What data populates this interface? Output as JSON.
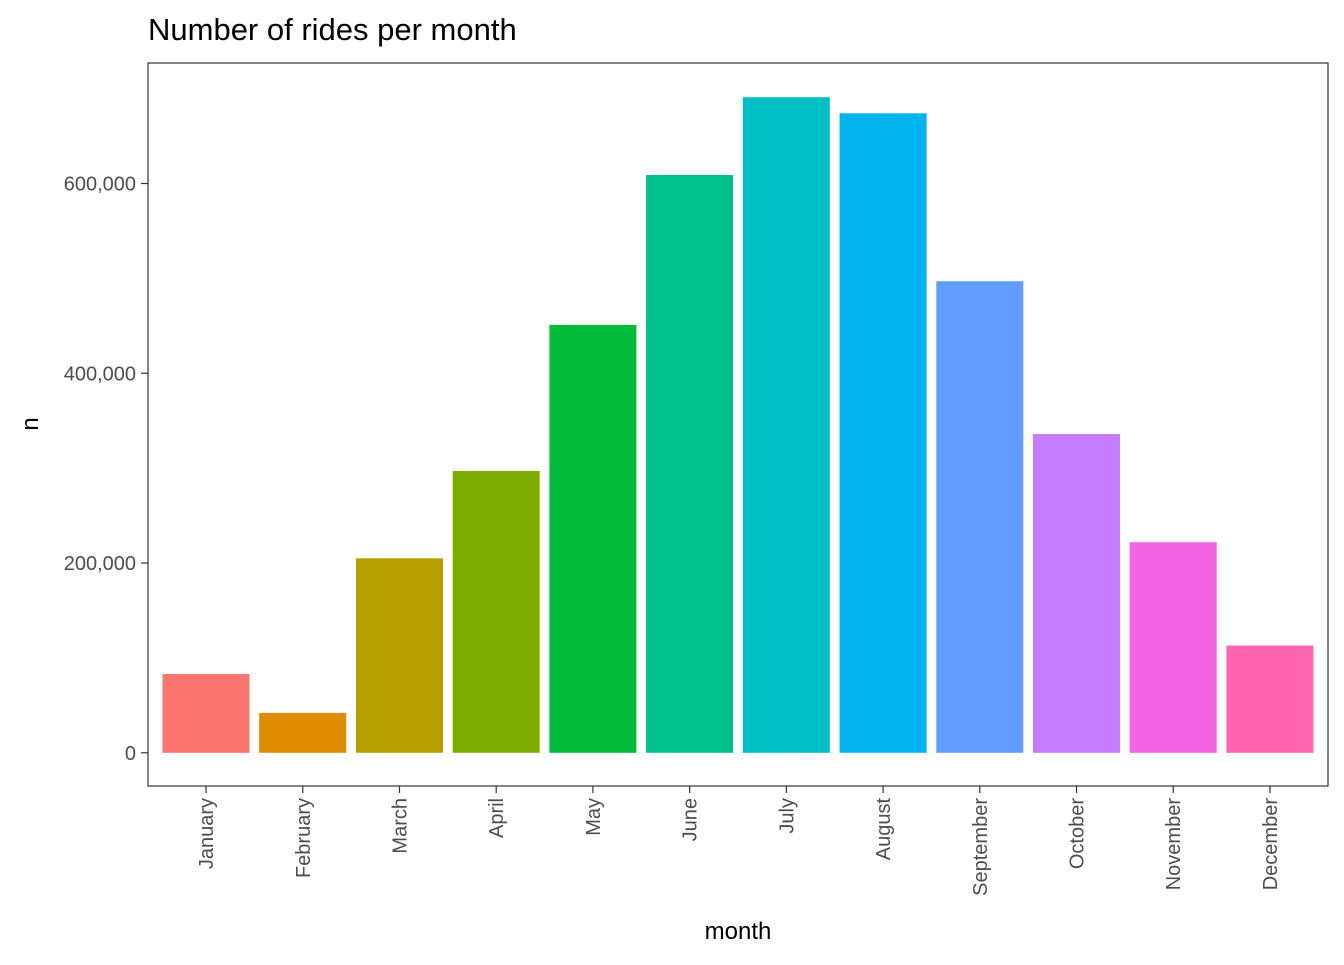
{
  "chart_data": {
    "type": "bar",
    "title": "Number of rides per month",
    "xlabel": "month",
    "ylabel": "n",
    "categories": [
      "January",
      "February",
      "March",
      "April",
      "May",
      "June",
      "July",
      "August",
      "September",
      "October",
      "November",
      "December"
    ],
    "values": [
      83000,
      42000,
      205000,
      297000,
      451000,
      609000,
      691000,
      674000,
      497000,
      336000,
      222000,
      113000
    ],
    "colors": [
      "#F8766D",
      "#DE8C00",
      "#B79F00",
      "#7CAE00",
      "#00BA38",
      "#00C08B",
      "#00BFC4",
      "#00B4F0",
      "#619CFF",
      "#C77CFF",
      "#F564E3",
      "#FF64B0"
    ],
    "ylim": [
      -35000,
      727000
    ],
    "yticks": [
      0,
      200000,
      400000,
      600000
    ],
    "ytick_labels": [
      "0",
      "200,000",
      "400,000",
      "600,000"
    ],
    "grid": false,
    "legend": "none"
  }
}
